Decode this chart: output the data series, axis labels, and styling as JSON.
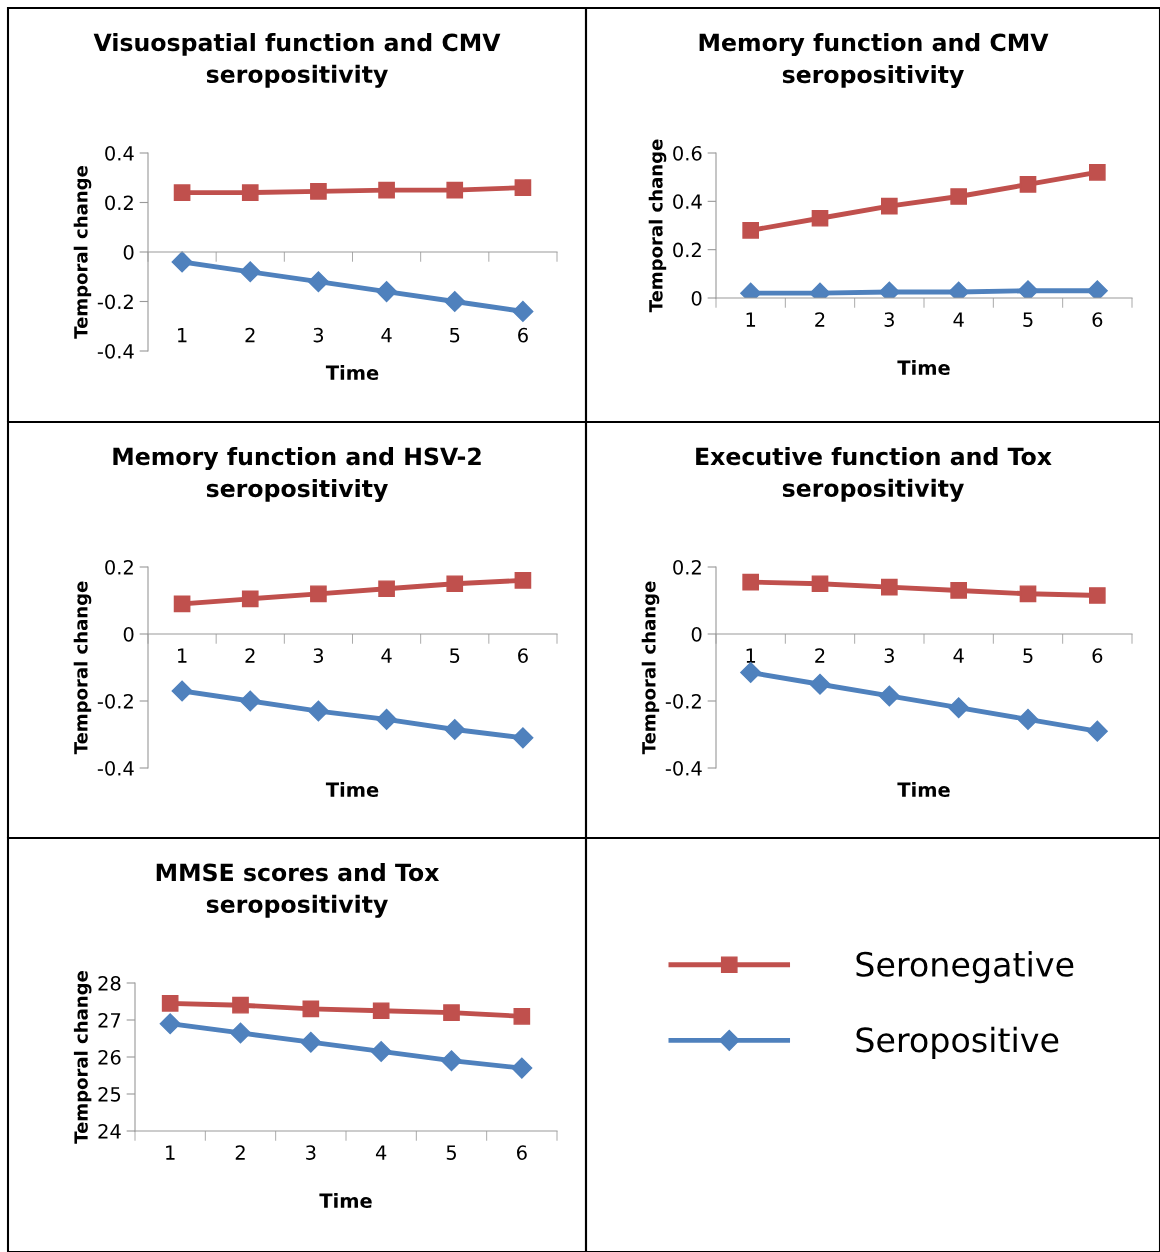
{
  "chart_data": [
    {
      "type": "line",
      "title": "Visuospatial function and CMV seropositivity",
      "xlabel": "Time",
      "ylabel": "Temporal change",
      "categories": [
        "1",
        "2",
        "3",
        "4",
        "5",
        "6"
      ],
      "ylim": [
        -0.4,
        0.4
      ],
      "yticks": [
        -0.4,
        -0.2,
        0,
        0.2,
        0.4
      ],
      "legend": "bottom right",
      "series": [
        {
          "name": "Seronegative",
          "color": "#c0504d",
          "marker": "square",
          "values": [
            0.24,
            0.24,
            0.245,
            0.25,
            0.25,
            0.26
          ]
        },
        {
          "name": "Seropositive",
          "color": "#4f81bd",
          "marker": "diamond",
          "values": [
            -0.04,
            -0.08,
            -0.12,
            -0.16,
            -0.2,
            -0.24
          ]
        }
      ]
    },
    {
      "type": "line",
      "title": "Memory function and CMV seropositivity",
      "xlabel": "Time",
      "ylabel": "Temporal change",
      "categories": [
        "1",
        "2",
        "3",
        "4",
        "5",
        "6"
      ],
      "ylim": [
        0,
        0.6
      ],
      "yticks": [
        0,
        0.2,
        0.4,
        0.6
      ],
      "series": [
        {
          "color": "#c0504d",
          "marker": "square",
          "values": [
            0.28,
            0.33,
            0.38,
            0.42,
            0.47,
            0.52
          ]
        },
        {
          "color": "#4f81bd",
          "marker": "diamond",
          "values": [
            0.02,
            0.02,
            0.025,
            0.025,
            0.03,
            0.03
          ]
        }
      ]
    },
    {
      "type": "line",
      "title": "Memory function and HSV-2 seropositivity",
      "xlabel": "Time",
      "ylabel": "Temporal change",
      "categories": [
        "1",
        "2",
        "3",
        "4",
        "5",
        "6"
      ],
      "ylim": [
        -0.4,
        0.2
      ],
      "yticks": [
        -0.4,
        -0.2,
        0,
        0.2
      ],
      "series": [
        {
          "color": "#c0504d",
          "marker": "square",
          "values": [
            0.09,
            0.105,
            0.12,
            0.135,
            0.15,
            0.16
          ]
        },
        {
          "color": "#4f81bd",
          "marker": "diamond",
          "values": [
            -0.17,
            -0.2,
            -0.23,
            -0.255,
            -0.285,
            -0.31
          ]
        }
      ]
    },
    {
      "type": "line",
      "title": "Executive function and Tox seropositivity",
      "xlabel": "Time",
      "ylabel": "Temporal change",
      "categories": [
        "1",
        "2",
        "3",
        "4",
        "5",
        "6"
      ],
      "ylim": [
        -0.4,
        0.2
      ],
      "yticks": [
        -0.4,
        -0.2,
        0,
        0.2
      ],
      "series": [
        {
          "color": "#c0504d",
          "marker": "square",
          "values": [
            0.155,
            0.15,
            0.14,
            0.13,
            0.12,
            0.115
          ]
        },
        {
          "color": "#4f81bd",
          "marker": "diamond",
          "values": [
            -0.115,
            -0.15,
            -0.185,
            -0.22,
            -0.255,
            -0.29
          ]
        }
      ]
    },
    {
      "type": "line",
      "title": "MMSE scores and Tox seropositivity",
      "xlabel": "Time",
      "ylabel": "Temporal change",
      "categories": [
        "1",
        "2",
        "3",
        "4",
        "5",
        "6"
      ],
      "ylim": [
        24,
        28
      ],
      "yticks": [
        24,
        25,
        26,
        27,
        28
      ],
      "series": [
        {
          "color": "#c0504d",
          "marker": "square",
          "values": [
            27.45,
            27.4,
            27.3,
            27.25,
            27.2,
            27.1
          ]
        },
        {
          "color": "#4f81bd",
          "marker": "diamond",
          "values": [
            26.9,
            26.65,
            26.4,
            26.15,
            25.9,
            25.7
          ]
        }
      ]
    }
  ]
}
